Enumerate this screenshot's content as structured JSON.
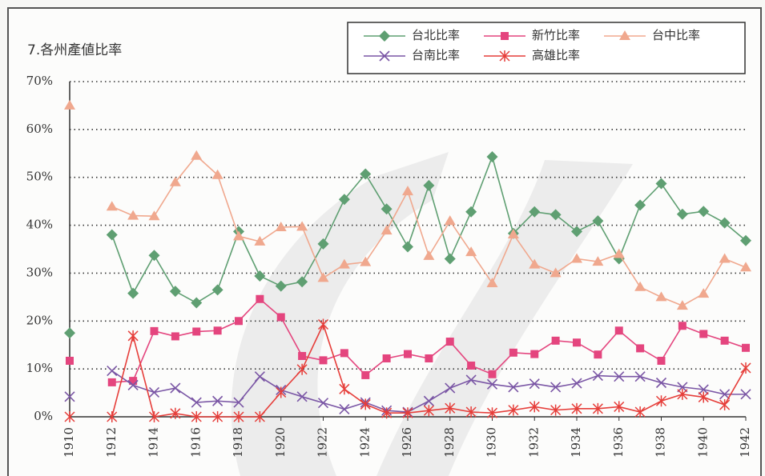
{
  "chart_data": {
    "type": "line",
    "title": "7.各州產値比率",
    "x": [
      1910,
      1911,
      1912,
      1913,
      1914,
      1915,
      1916,
      1917,
      1918,
      1919,
      1920,
      1921,
      1922,
      1923,
      1924,
      1925,
      1926,
      1927,
      1928,
      1929,
      1930,
      1931,
      1932,
      1933,
      1934,
      1935,
      1936,
      1937,
      1938,
      1939,
      1940,
      1941,
      1942
    ],
    "xlim": [
      1910,
      1942
    ],
    "xticks": [
      1910,
      1912,
      1914,
      1916,
      1918,
      1920,
      1922,
      1924,
      1926,
      1928,
      1930,
      1932,
      1934,
      1936,
      1938,
      1940,
      1942
    ],
    "ylim": [
      0,
      70
    ],
    "yticks": [
      {
        "value": 0,
        "label": "0%"
      },
      {
        "value": 10,
        "label": "10%"
      },
      {
        "value": 20,
        "label": "20%"
      },
      {
        "value": 30,
        "label": "30%"
      },
      {
        "value": 40,
        "label": "40%"
      },
      {
        "value": 50,
        "label": "50%"
      },
      {
        "value": 60,
        "label": "60%"
      },
      {
        "value": 70,
        "label": "70%"
      }
    ],
    "grid": true,
    "legend": "top-right",
    "series": [
      {
        "name": "台北比率",
        "color": "#5f9f72",
        "marker": "diamond",
        "values": [
          17.5,
          null,
          38,
          25.8,
          33.7,
          26.2,
          23.8,
          26.5,
          38.7,
          29.4,
          27.3,
          28.2,
          36.1,
          45.4,
          50.7,
          43.4,
          35.5,
          48.3,
          33,
          42.8,
          54.3,
          38.3,
          42.8,
          42.2,
          38.7,
          40.9,
          33,
          44.2,
          48.7,
          42.3,
          42.9,
          40.5,
          36.8
        ]
      },
      {
        "name": "新竹比率",
        "color": "#e4457e",
        "marker": "square",
        "values": [
          11.7,
          null,
          7.2,
          7.5,
          17.9,
          16.8,
          17.8,
          18,
          20,
          24.6,
          20.8,
          12.7,
          11.8,
          13.3,
          8.7,
          12.2,
          13.1,
          12.2,
          15.7,
          10.7,
          8.9,
          13.4,
          13.1,
          15.9,
          15.5,
          13,
          18,
          14.3,
          11.7,
          19,
          17.3,
          15.9,
          14.4
        ]
      },
      {
        "name": "台中比率",
        "color": "#f0a88e",
        "marker": "triangle",
        "values": [
          65,
          null,
          43.9,
          42,
          41.9,
          49,
          54.5,
          50.5,
          37.7,
          36.6,
          39.6,
          39.7,
          29,
          31.8,
          32.3,
          38.9,
          47.1,
          33.6,
          40.9,
          34.4,
          27.9,
          38.1,
          31.8,
          30,
          33,
          32.4,
          34,
          27.1,
          25,
          23.2,
          25.7,
          33,
          31.2
        ]
      },
      {
        "name": "台南比率",
        "color": "#7a56a5",
        "marker": "x",
        "values": [
          4.2,
          null,
          9.6,
          6.6,
          5.1,
          6,
          3,
          3.3,
          3,
          8.4,
          5.6,
          4.2,
          2.9,
          1.6,
          3,
          1.3,
          1,
          3.3,
          6,
          7.7,
          6.8,
          6.2,
          6.9,
          6.2,
          7,
          8.6,
          8.4,
          8.4,
          7.1,
          6.2,
          5.7,
          4.7,
          4.7
        ]
      },
      {
        "name": "高雄比率",
        "color": "#e63e3a",
        "marker": "asterisk",
        "values": [
          0,
          null,
          0,
          16.9,
          0,
          0.7,
          0,
          0,
          0,
          0,
          5.1,
          9.9,
          19.3,
          5.8,
          2.6,
          0.8,
          0.8,
          1.3,
          1.8,
          1,
          0.8,
          1.4,
          2.1,
          1.4,
          1.7,
          1.7,
          2.1,
          1,
          3.3,
          4.7,
          4.1,
          2.5,
          10.2
        ]
      }
    ]
  }
}
